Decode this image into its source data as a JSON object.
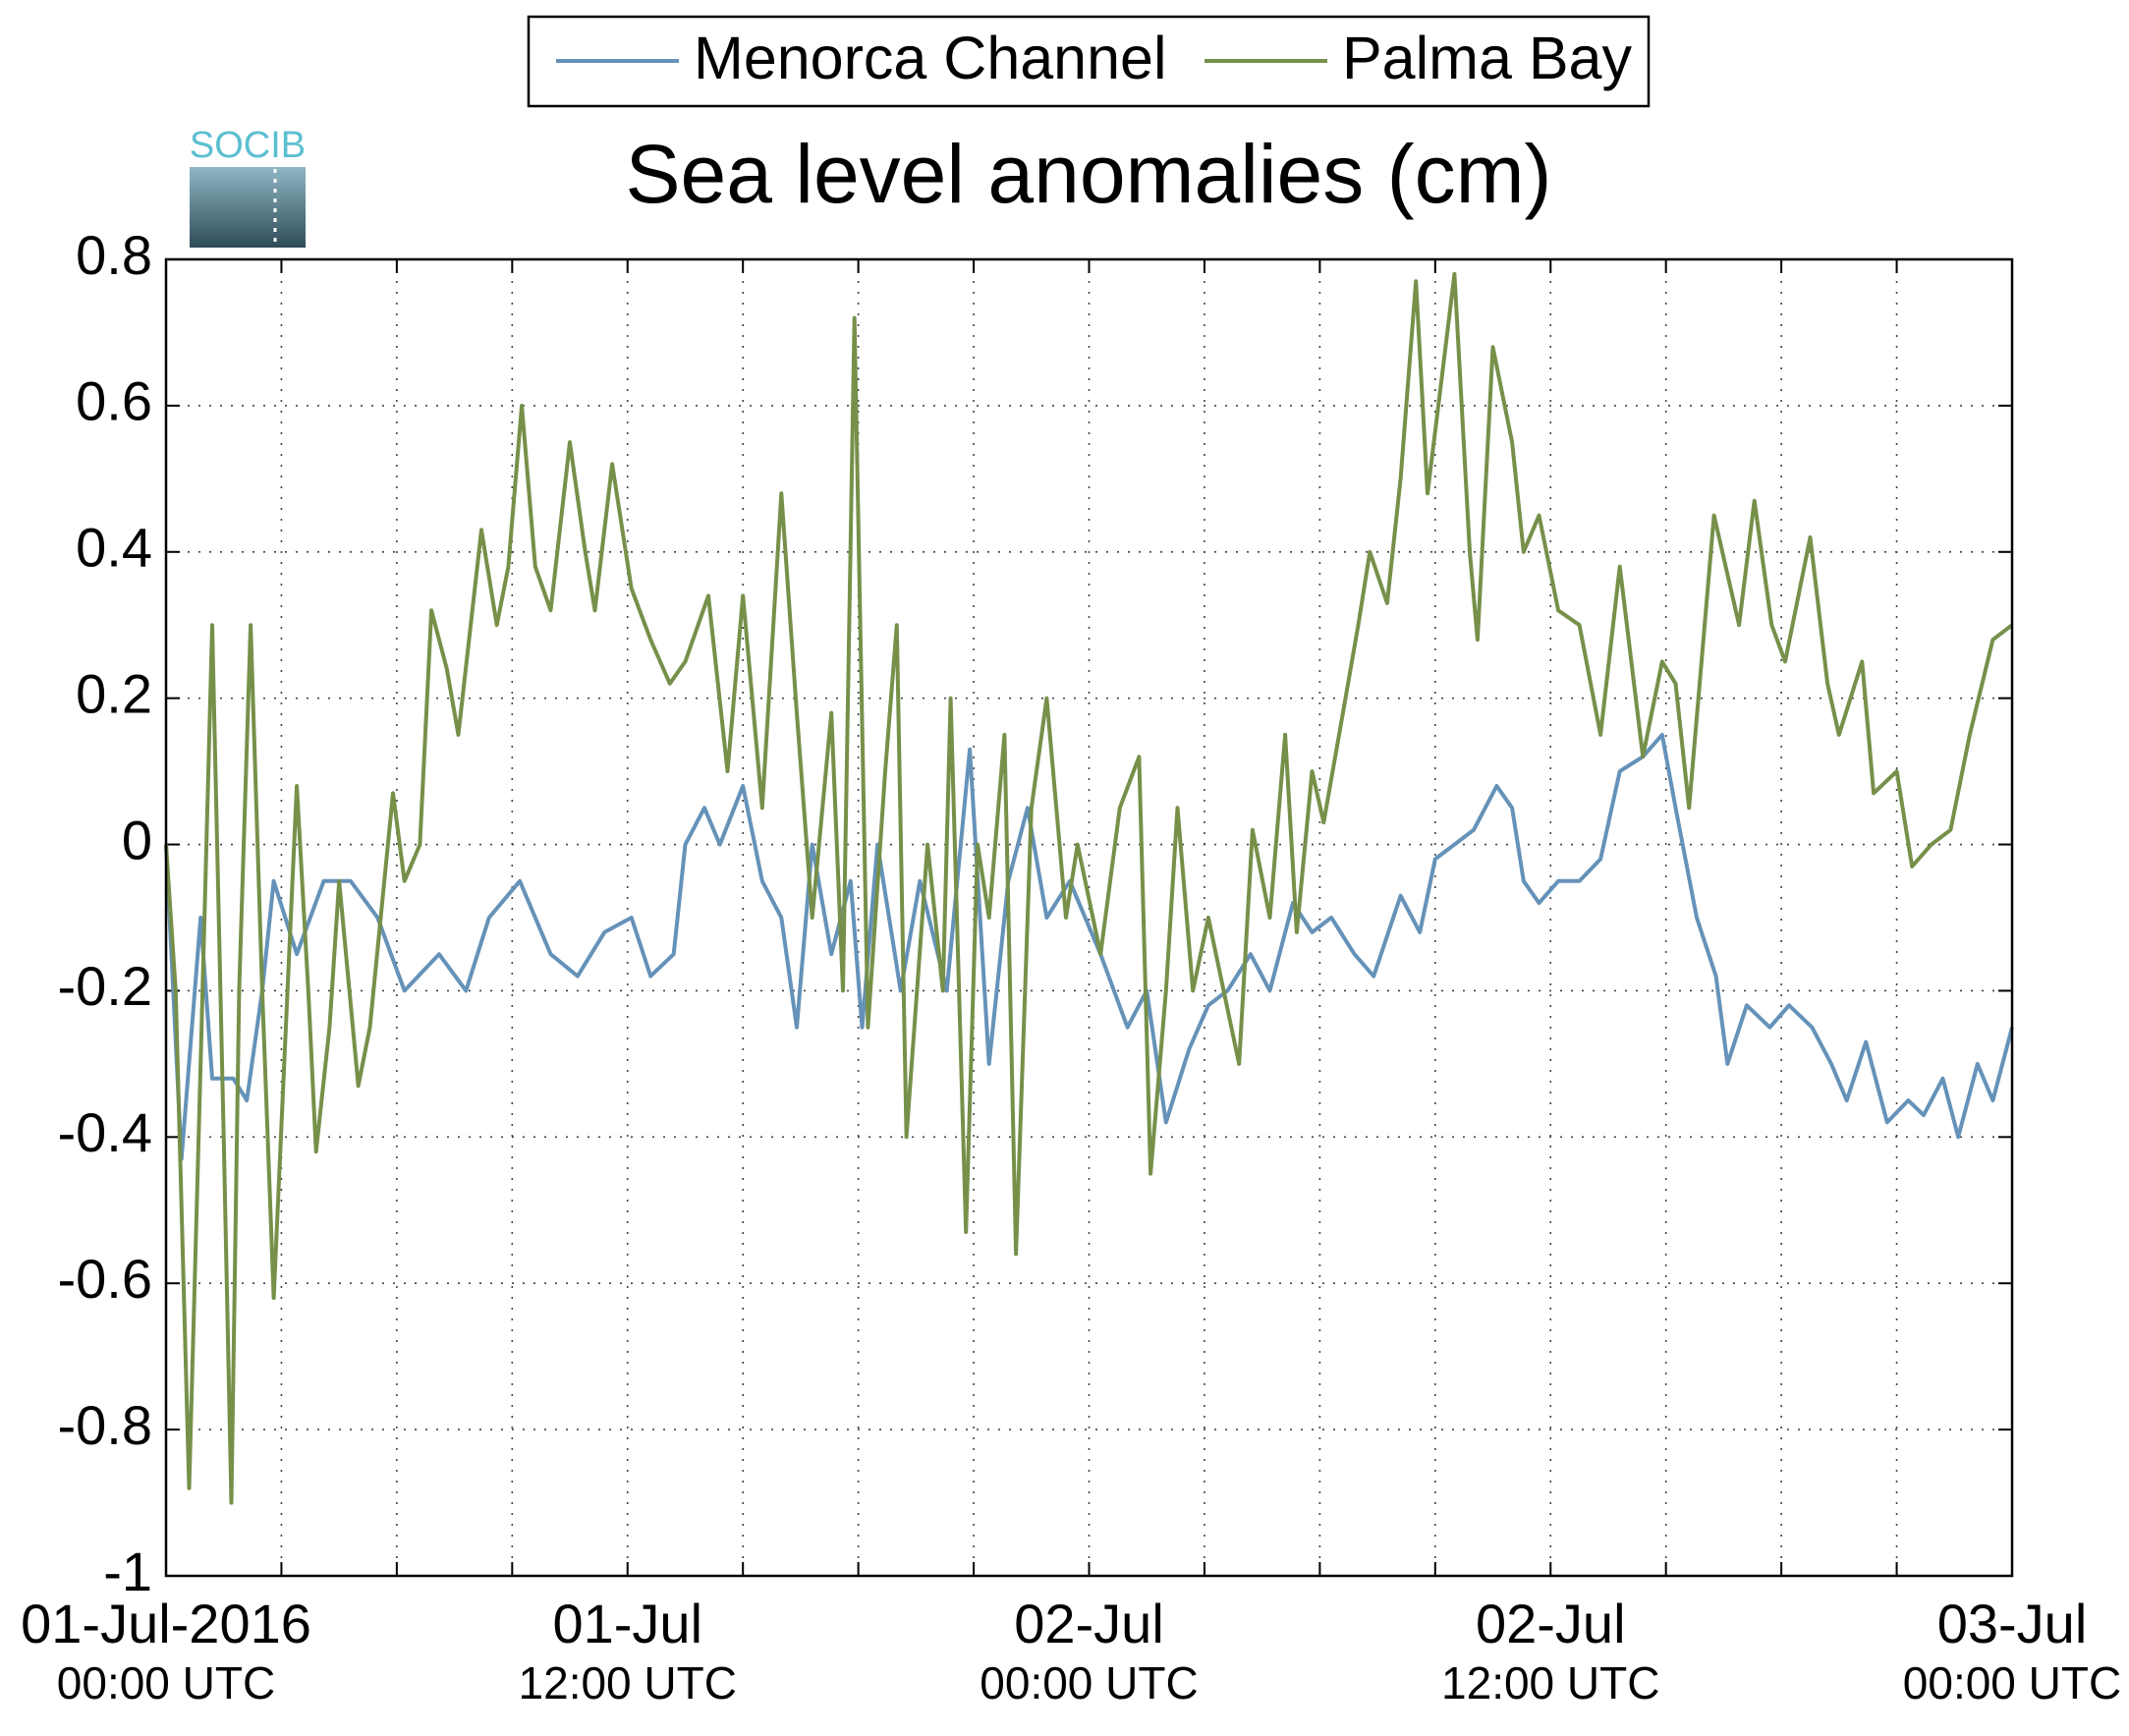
{
  "logo_text": "SOCIB",
  "chart_data": {
    "type": "line",
    "title": "Sea level anomalies (cm)",
    "xlim": [
      0,
      48
    ],
    "xticks": [
      {
        "value": 0,
        "label": [
          "01-Jul-2016",
          "00:00 UTC"
        ]
      },
      {
        "value": 3
      },
      {
        "value": 6
      },
      {
        "value": 9
      },
      {
        "value": 12,
        "label": [
          "01-Jul",
          "12:00 UTC"
        ]
      },
      {
        "value": 15
      },
      {
        "value": 18
      },
      {
        "value": 21
      },
      {
        "value": 24,
        "label": [
          "02-Jul",
          "00:00 UTC"
        ]
      },
      {
        "value": 27
      },
      {
        "value": 30
      },
      {
        "value": 33
      },
      {
        "value": 36,
        "label": [
          "02-Jul",
          "12:00 UTC"
        ]
      },
      {
        "value": 39
      },
      {
        "value": 42
      },
      {
        "value": 45
      },
      {
        "value": 48,
        "label": [
          "03-Jul",
          "00:00 UTC"
        ]
      }
    ],
    "ylim": [
      -1,
      0.8
    ],
    "yticks": [
      -1,
      -0.8,
      -0.6,
      -0.4,
      -0.2,
      0,
      0.2,
      0.4,
      0.6,
      0.8
    ],
    "grid": true,
    "legend": "top",
    "series": [
      {
        "name": "Menorca Channel",
        "color": "#6592b8",
        "x": [
          0,
          0.4,
          0.9,
          1.2,
          1.75,
          2.1,
          2.5,
          2.8,
          3.4,
          4.1,
          4.8,
          5.5,
          6.2,
          7.1,
          7.8,
          8.4,
          9.2,
          10,
          10.7,
          11.4,
          12.1,
          12.6,
          13.2,
          13.5,
          14,
          14.4,
          15,
          15.5,
          16,
          16.4,
          16.8,
          17.3,
          17.8,
          18.1,
          18.5,
          19.1,
          19.6,
          20.3,
          20.9,
          21.4,
          21.9,
          22.4,
          22.9,
          23.5,
          24.3,
          25,
          25.5,
          26,
          26.6,
          27.1,
          27.6,
          28.2,
          28.7,
          29.3,
          29.8,
          30.3,
          30.9,
          31.4,
          32.1,
          32.6,
          33,
          33.5,
          34,
          34.6,
          35,
          35.3,
          35.7,
          36.2,
          36.75,
          37.3,
          37.8,
          38.4,
          38.9,
          39.25,
          39.8,
          40.3,
          40.6,
          41.1,
          41.7,
          42.2,
          42.8,
          43.3,
          43.7,
          44.2,
          44.75,
          45.3,
          45.7,
          46.2,
          46.6,
          47.1,
          47.5,
          48
        ],
        "values": [
          0,
          -0.43,
          -0.1,
          -0.32,
          -0.32,
          -0.35,
          -0.2,
          -0.05,
          -0.15,
          -0.05,
          -0.05,
          -0.1,
          -0.2,
          -0.15,
          -0.2,
          -0.1,
          -0.05,
          -0.15,
          -0.18,
          -0.12,
          -0.1,
          -0.18,
          -0.15,
          0,
          0.05,
          0,
          0.08,
          -0.05,
          -0.1,
          -0.25,
          0,
          -0.15,
          -0.05,
          -0.25,
          0,
          -0.2,
          -0.05,
          -0.2,
          0.13,
          -0.3,
          -0.05,
          0.05,
          -0.1,
          -0.05,
          -0.15,
          -0.25,
          -0.2,
          -0.38,
          -0.28,
          -0.22,
          -0.2,
          -0.15,
          -0.2,
          -0.08,
          -0.12,
          -0.1,
          -0.15,
          -0.18,
          -0.07,
          -0.12,
          -0.02,
          0,
          0.02,
          0.08,
          0.05,
          -0.05,
          -0.08,
          -0.05,
          -0.05,
          -0.02,
          0.1,
          0.12,
          0.15,
          0.05,
          -0.1,
          -0.18,
          -0.3,
          -0.22,
          -0.25,
          -0.22,
          -0.25,
          -0.3,
          -0.35,
          -0.27,
          -0.38,
          -0.35,
          -0.37,
          -0.32,
          -0.4,
          -0.3,
          -0.35,
          -0.25
        ]
      },
      {
        "name": "Palma Bay",
        "color": "#76904a",
        "x": [
          0,
          0.25,
          0.6,
          0.9,
          1.2,
          1.5,
          1.7,
          1.9,
          2.2,
          2.5,
          2.8,
          3.2,
          3.4,
          3.7,
          3.9,
          4.25,
          4.5,
          5,
          5.3,
          5.9,
          6.2,
          6.6,
          6.9,
          7.3,
          7.6,
          8.2,
          8.6,
          8.9,
          9.25,
          9.6,
          10,
          10.5,
          10.9,
          11.15,
          11.6,
          12.1,
          12.6,
          13.1,
          13.5,
          14.1,
          14.6,
          15,
          15.5,
          16,
          16.4,
          16.8,
          17.3,
          17.6,
          17.9,
          18.25,
          18.7,
          19,
          19.25,
          19.8,
          20.2,
          20.4,
          20.8,
          21.1,
          21.4,
          21.8,
          22.1,
          22.5,
          22.9,
          23.4,
          23.7,
          24.3,
          24.8,
          25.3,
          25.6,
          26,
          26.3,
          26.7,
          27.1,
          27.5,
          27.9,
          28.25,
          28.7,
          29.1,
          29.4,
          29.8,
          30.1,
          30.6,
          31,
          31.3,
          31.75,
          32.1,
          32.5,
          32.8,
          33.2,
          33.5,
          33.9,
          34.1,
          34.5,
          35,
          35.3,
          35.7,
          36.2,
          36.75,
          37.3,
          37.8,
          38.4,
          38.9,
          39.25,
          39.6,
          40.25,
          40.9,
          41.3,
          41.75,
          42.1,
          42.75,
          43.2,
          43.5,
          44.1,
          44.4,
          45,
          45.4,
          45.9,
          46.4,
          46.9,
          47.5,
          48
        ],
        "values": [
          0,
          -0.2,
          -0.88,
          -0.3,
          0.3,
          -0.4,
          -0.9,
          -0.2,
          0.3,
          -0.2,
          -0.62,
          -0.15,
          0.08,
          -0.2,
          -0.42,
          -0.25,
          -0.05,
          -0.33,
          -0.25,
          0.07,
          -0.05,
          0,
          0.32,
          0.24,
          0.15,
          0.43,
          0.3,
          0.38,
          0.6,
          0.38,
          0.32,
          0.55,
          0.4,
          0.32,
          0.52,
          0.35,
          0.28,
          0.22,
          0.25,
          0.34,
          0.1,
          0.34,
          0.05,
          0.48,
          0.18,
          -0.1,
          0.18,
          -0.2,
          0.72,
          -0.25,
          0.1,
          0.3,
          -0.4,
          0,
          -0.2,
          0.2,
          -0.53,
          0,
          -0.1,
          0.15,
          -0.56,
          0.05,
          0.2,
          -0.1,
          0,
          -0.15,
          0.05,
          0.12,
          -0.45,
          -0.2,
          0.05,
          -0.2,
          -0.1,
          -0.2,
          -0.3,
          0.02,
          -0.1,
          0.15,
          -0.12,
          0.1,
          0.03,
          0.18,
          0.3,
          0.4,
          0.33,
          0.5,
          0.77,
          0.48,
          0.65,
          0.78,
          0.4,
          0.28,
          0.68,
          0.55,
          0.4,
          0.45,
          0.32,
          0.3,
          0.15,
          0.38,
          0.12,
          0.25,
          0.22,
          0.05,
          0.45,
          0.3,
          0.47,
          0.3,
          0.25,
          0.42,
          0.22,
          0.15,
          0.25,
          0.07,
          0.1,
          -0.03,
          0,
          0.02,
          0.15,
          0.28,
          0.3
        ]
      }
    ]
  }
}
